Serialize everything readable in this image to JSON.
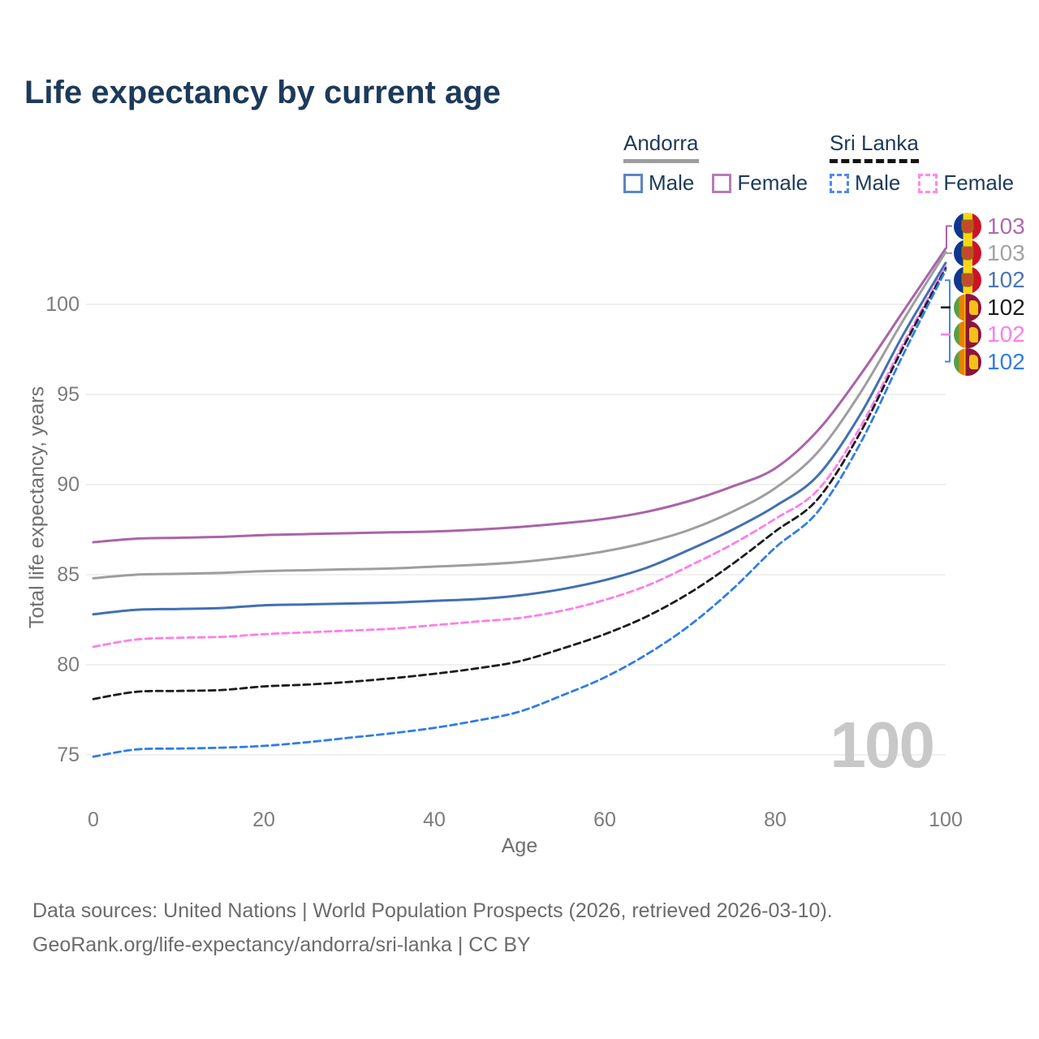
{
  "page": {
    "title": "Life expectancy by current age",
    "footer_line1": "Data sources: United Nations | World Population Prospects (2026, retrieved 2026-03-10).",
    "footer_line2": "GeoRank.org/life-expectancy/andorra/sri-lanka | CC BY"
  },
  "legend": {
    "groups": [
      {
        "id": "andorra",
        "name": "Andorra",
        "line_style": "solid",
        "underline_color": "#9e9e9e",
        "items": [
          {
            "id": "andorra-male",
            "label": "Male",
            "swatch_color": "#5b86c2",
            "dashed": false
          },
          {
            "id": "andorra-female",
            "label": "Female",
            "swatch_color": "#b57cb5",
            "dashed": false
          }
        ]
      },
      {
        "id": "sri-lanka",
        "name": "Sri Lanka",
        "line_style": "dashed",
        "underline_color": "#141414",
        "items": [
          {
            "id": "sri-lanka-male",
            "label": "Male",
            "swatch_color": "#4b8bf5",
            "dashed": true
          },
          {
            "id": "sri-lanka-female",
            "label": "Female",
            "swatch_color": "#ff8ae8",
            "dashed": true
          }
        ]
      }
    ]
  },
  "chart_data": {
    "type": "line",
    "title": "Life expectancy by current age",
    "xlabel": "Age",
    "ylabel": "Total life expectancy, years",
    "age_marker": "100",
    "xlim": [
      0,
      100
    ],
    "ylim": [
      73,
      104
    ],
    "xticks": [
      0,
      20,
      40,
      60,
      80,
      100
    ],
    "yticks": [
      75,
      80,
      85,
      90,
      95,
      100
    ],
    "grid": "horizontal-only",
    "legend_position": "top-right",
    "x": [
      0,
      5,
      10,
      15,
      20,
      25,
      30,
      35,
      40,
      45,
      50,
      55,
      60,
      65,
      70,
      75,
      80,
      85,
      90,
      95,
      100
    ],
    "series": [
      {
        "id": "andorra-female",
        "name": "Andorra Female",
        "country": "Andorra",
        "sex": "Female",
        "color": "#ab63a8",
        "dashed": false,
        "flag": "ad",
        "end_label": "103",
        "end_label_color": "#b06ab0",
        "values": [
          86.8,
          87.0,
          87.05,
          87.1,
          87.2,
          87.25,
          87.3,
          87.35,
          87.4,
          87.5,
          87.65,
          87.85,
          88.1,
          88.5,
          89.1,
          89.9,
          90.9,
          93.0,
          96.1,
          99.6,
          103.1
        ]
      },
      {
        "id": "andorra",
        "name": "Andorra",
        "country": "Andorra",
        "sex": "Both",
        "color": "#9e9e9e",
        "dashed": false,
        "flag": "ad",
        "end_label": "103",
        "end_label_color": "#a3a3a3",
        "values": [
          84.8,
          85.0,
          85.05,
          85.1,
          85.2,
          85.25,
          85.3,
          85.35,
          85.45,
          85.55,
          85.7,
          85.95,
          86.3,
          86.8,
          87.5,
          88.5,
          89.8,
          91.8,
          95.1,
          99.1,
          102.9
        ]
      },
      {
        "id": "andorra-male",
        "name": "Andorra Male",
        "country": "Andorra",
        "sex": "Male",
        "color": "#4170b4",
        "dashed": false,
        "flag": "ad",
        "end_label": "102",
        "end_label_color": "#4a76b8",
        "values": [
          82.8,
          83.05,
          83.1,
          83.15,
          83.3,
          83.35,
          83.4,
          83.45,
          83.55,
          83.65,
          83.85,
          84.2,
          84.7,
          85.4,
          86.4,
          87.5,
          88.8,
          90.5,
          93.9,
          98.3,
          102.3
        ]
      },
      {
        "id": "sri-lanka-female",
        "name": "Sri Lanka Female",
        "country": "Sri Lanka",
        "sex": "Female",
        "color": "#ff7de9",
        "dashed": true,
        "flag": "lk",
        "end_label": "102",
        "end_label_color": "#ff7de9",
        "values": [
          81.0,
          81.4,
          81.5,
          81.55,
          81.7,
          81.8,
          81.9,
          82.0,
          82.2,
          82.4,
          82.6,
          83.0,
          83.6,
          84.4,
          85.5,
          86.7,
          88.1,
          89.7,
          93.2,
          97.8,
          102.1
        ]
      },
      {
        "id": "sri-lanka",
        "name": "Sri Lanka",
        "country": "Sri Lanka",
        "sex": "Both",
        "color": "#1c1c1c",
        "dashed": true,
        "flag": "lk",
        "end_label": "102",
        "end_label_color": "#1c1c1c",
        "values": [
          78.1,
          78.5,
          78.55,
          78.6,
          78.8,
          78.9,
          79.05,
          79.25,
          79.5,
          79.8,
          80.2,
          80.9,
          81.7,
          82.7,
          84.0,
          85.6,
          87.4,
          89.2,
          92.9,
          97.6,
          102.0
        ]
      },
      {
        "id": "sri-lanka-male",
        "name": "Sri Lanka Male",
        "country": "Sri Lanka",
        "sex": "Male",
        "color": "#2f7ced",
        "dashed": true,
        "flag": "lk",
        "end_label": "102",
        "end_label_color": "#2f7ced",
        "values": [
          74.9,
          75.3,
          75.35,
          75.4,
          75.5,
          75.7,
          75.95,
          76.2,
          76.5,
          76.9,
          77.4,
          78.3,
          79.3,
          80.6,
          82.2,
          84.2,
          86.5,
          88.5,
          92.3,
          97.2,
          101.9
        ]
      }
    ],
    "right_label_rows": [
      "andorra-female",
      "andorra",
      "andorra-male",
      "sri-lanka",
      "sri-lanka-female",
      "sri-lanka-male"
    ]
  }
}
